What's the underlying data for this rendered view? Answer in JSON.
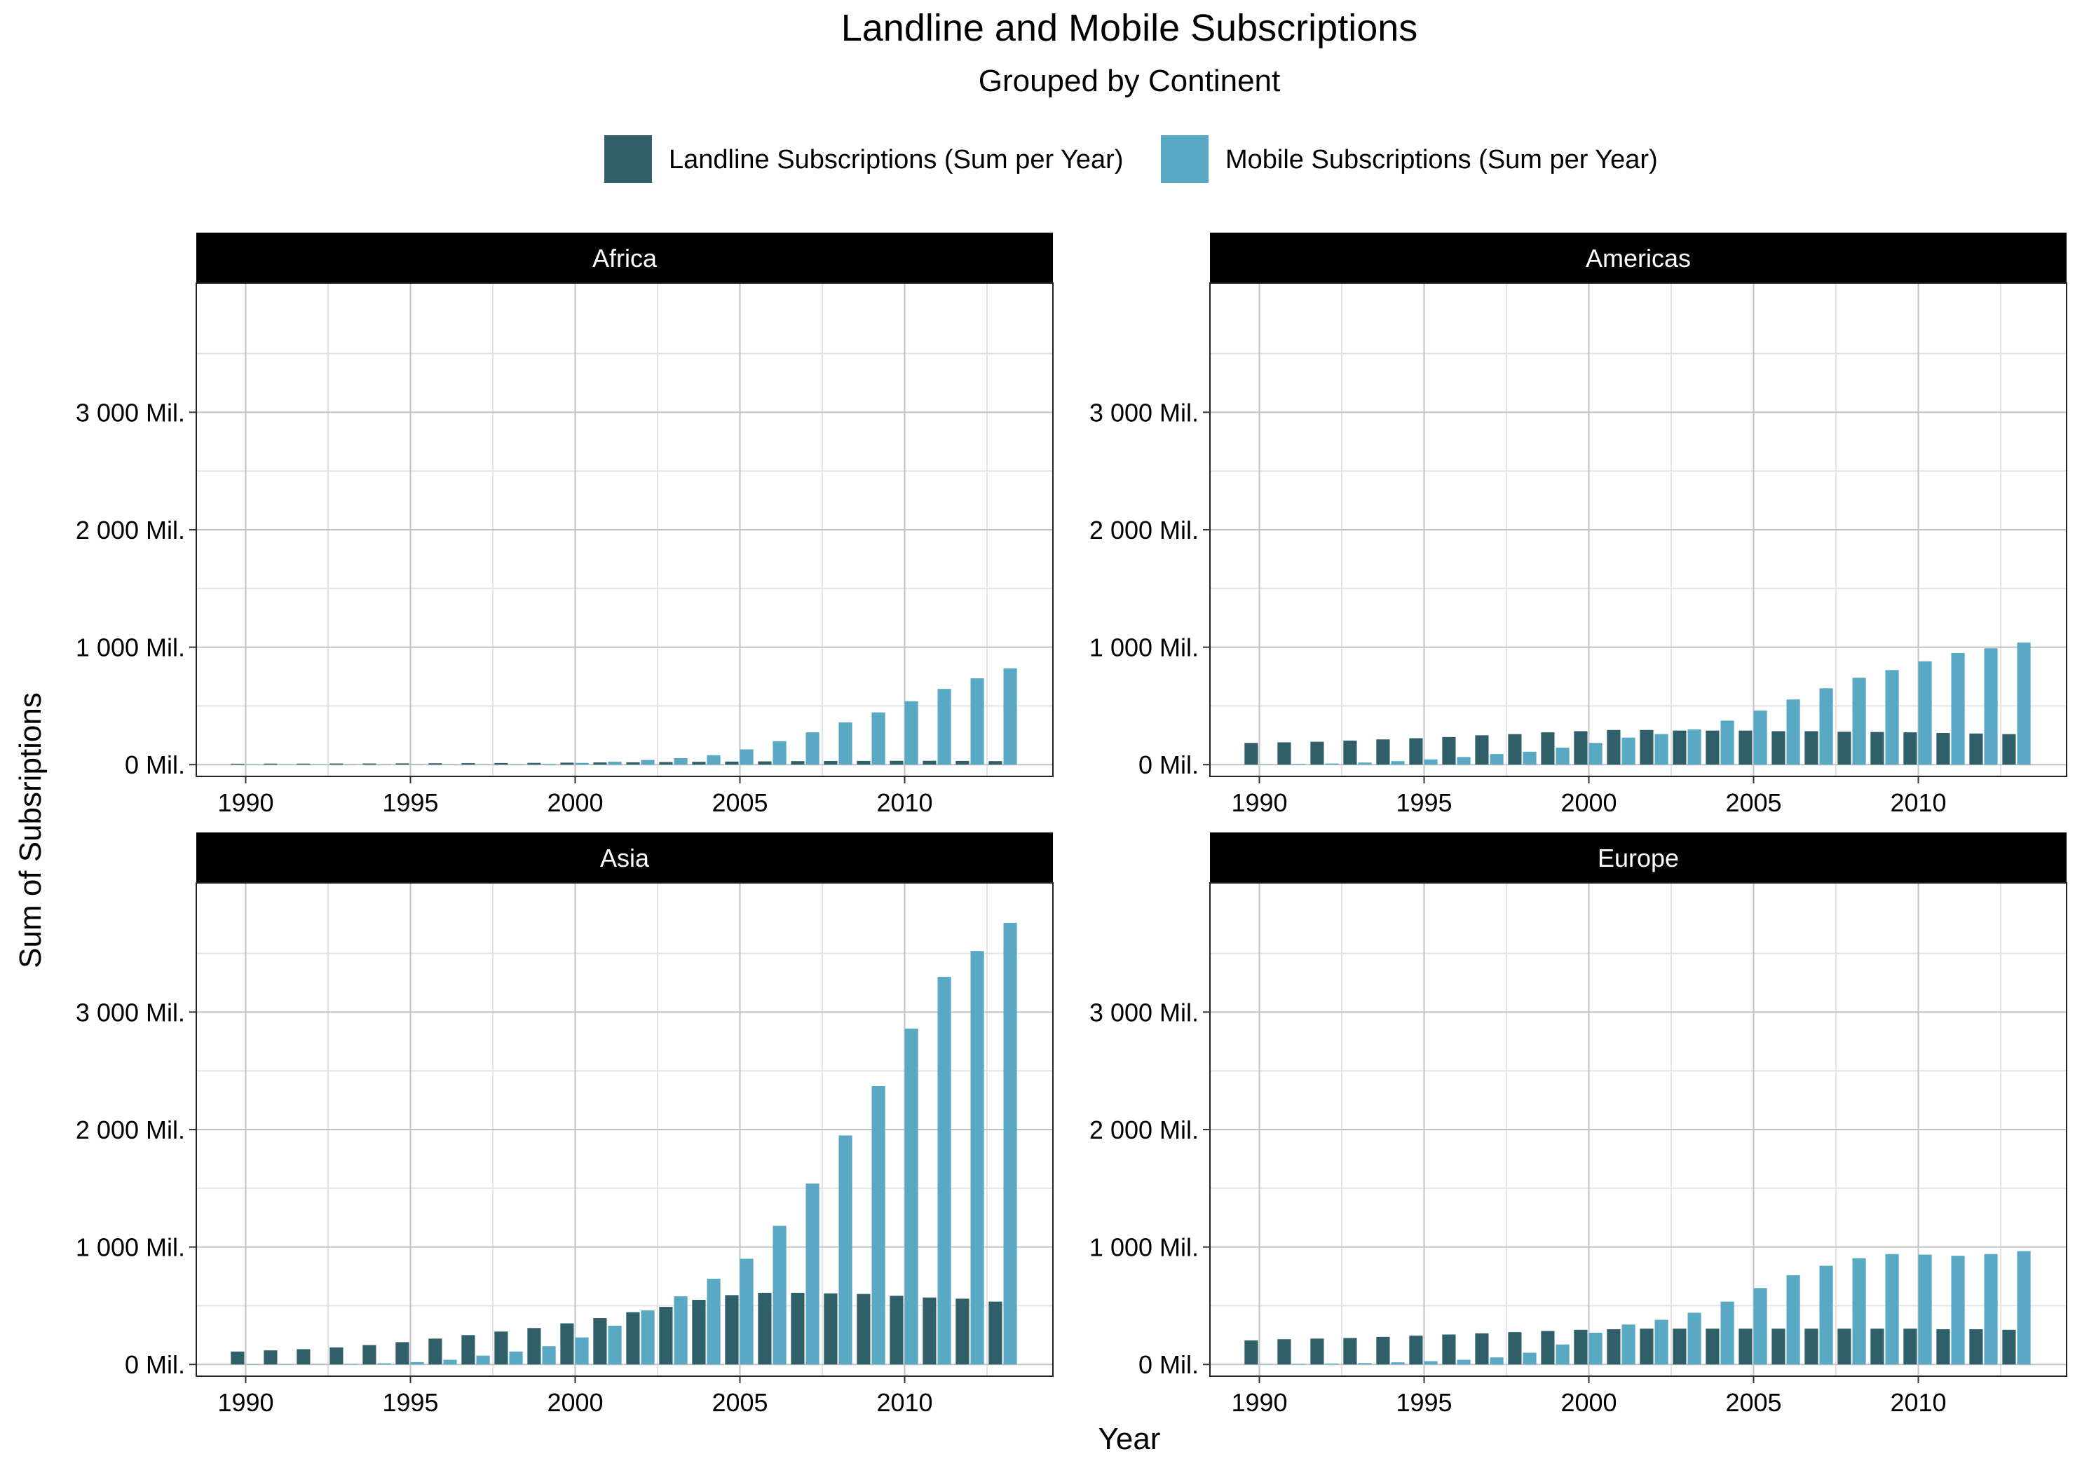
{
  "title": "Landline and Mobile Subscriptions",
  "subtitle": "Grouped by Continent",
  "xlabel": "Year",
  "ylabel": "Sum of Subsriptions",
  "colors": {
    "landline": "#2f5f69",
    "mobile": "#5aa9c4"
  },
  "legend": [
    "Landline Subscriptions (Sum per Year)",
    "Mobile Subscriptions (Sum per Year)"
  ],
  "chart_data": {
    "type": "bar",
    "layout": "facet-grid 2x2",
    "legend_position": "top",
    "grid": true,
    "x": [
      1990,
      1991,
      1992,
      1993,
      1994,
      1995,
      1996,
      1997,
      1998,
      1999,
      2000,
      2001,
      2002,
      2003,
      2004,
      2005,
      2006,
      2007,
      2008,
      2009,
      2010,
      2011,
      2012,
      2013
    ],
    "xticks": [
      1990,
      1995,
      2000,
      2005,
      2010
    ],
    "ylim": [
      -100,
      4100
    ],
    "yticks": [
      0,
      1000,
      2000,
      3000
    ],
    "ytick_labels": [
      "0 Mil.",
      "1 000 Mil.",
      "2 000 Mil.",
      "3 000 Mil."
    ],
    "facets": [
      {
        "name": "Africa",
        "series": [
          {
            "name": "Landline Subscriptions (Sum per Year)",
            "values": [
              8,
              9,
              9,
              10,
              10,
              11,
              12,
              13,
              14,
              15,
              17,
              19,
              20,
              22,
              24,
              26,
              28,
              30,
              31,
              32,
              33,
              33,
              32,
              30
            ]
          },
          {
            "name": "Mobile Subscriptions (Sum per Year)",
            "values": [
              0,
              0,
              0,
              0,
              0,
              1,
              1,
              2,
              4,
              7,
              15,
              25,
              40,
              55,
              80,
              130,
              200,
              275,
              360,
              445,
              540,
              645,
              735,
              820
            ]
          }
        ]
      },
      {
        "name": "Americas",
        "series": [
          {
            "name": "Landline Subscriptions (Sum per Year)",
            "values": [
              185,
              190,
              195,
              205,
              215,
              225,
              235,
              250,
              260,
              275,
              285,
              295,
              295,
              290,
              290,
              290,
              285,
              285,
              280,
              278,
              275,
              270,
              265,
              260
            ]
          },
          {
            "name": "Mobile Subscriptions (Sum per Year)",
            "values": [
              3,
              6,
              10,
              18,
              30,
              45,
              65,
              90,
              110,
              145,
              185,
              230,
              260,
              300,
              375,
              460,
              555,
              650,
              740,
              805,
              880,
              950,
              990,
              1040
            ]
          }
        ]
      },
      {
        "name": "Asia",
        "series": [
          {
            "name": "Landline Subscriptions (Sum per Year)",
            "values": [
              110,
              120,
              130,
              145,
              165,
              190,
              220,
              250,
              280,
              310,
              350,
              395,
              445,
              490,
              550,
              590,
              610,
              610,
              605,
              600,
              585,
              570,
              560,
              535
            ]
          },
          {
            "name": "Mobile Subscriptions (Sum per Year)",
            "values": [
              1,
              2,
              3,
              5,
              10,
              20,
              40,
              75,
              110,
              155,
              230,
              330,
              460,
              580,
              730,
              900,
              1180,
              1540,
              1950,
              2370,
              2860,
              3300,
              3520,
              3760
            ]
          }
        ]
      },
      {
        "name": "Europe",
        "series": [
          {
            "name": "Landline Subscriptions (Sum per Year)",
            "values": [
              205,
              215,
              220,
              225,
              235,
              245,
              255,
              265,
              275,
              285,
              295,
              300,
              305,
              305,
              305,
              305,
              305,
              305,
              305,
              305,
              305,
              300,
              300,
              295
            ]
          },
          {
            "name": "Mobile Subscriptions (Sum per Year)",
            "values": [
              3,
              5,
              8,
              12,
              18,
              28,
              40,
              60,
              100,
              170,
              270,
              340,
              380,
              440,
              535,
              650,
              760,
              840,
              905,
              940,
              935,
              925,
              940,
              965
            ]
          }
        ]
      }
    ]
  }
}
